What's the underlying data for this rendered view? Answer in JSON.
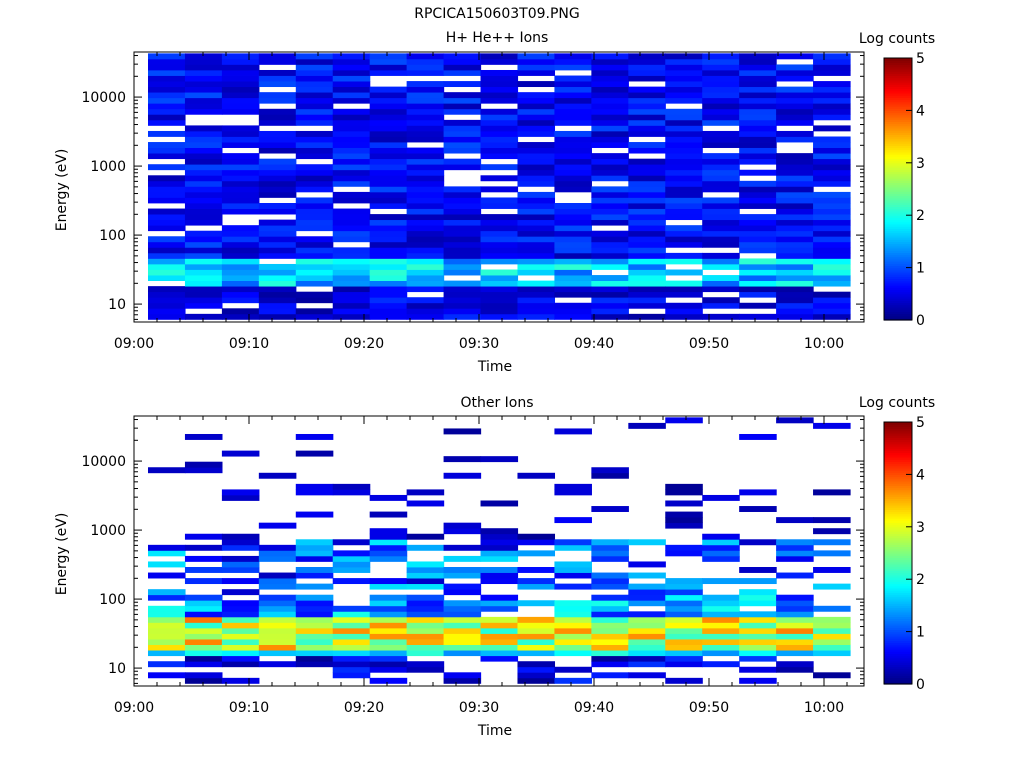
{
  "figure": {
    "title": "RPCICA150603T09.PNG"
  },
  "colormap": {
    "stops": [
      "#00007f",
      "#0000ff",
      "#007fff",
      "#00ffff",
      "#7fff7f",
      "#ffff00",
      "#ff7f00",
      "#ff0000",
      "#7f0000"
    ]
  },
  "chart_data": [
    {
      "type": "heatmap",
      "title": "H+ He++ Ions",
      "xlabel": "Time",
      "ylabel": "Energy (eV)",
      "x_ticks": [
        "09:00",
        "09:10",
        "09:20",
        "09:30",
        "09:40",
        "09:50",
        "10:00"
      ],
      "y_ticks": [
        "10",
        "100",
        "1000",
        "10000"
      ],
      "y_scale": "log",
      "ylim": [
        5.5,
        45000
      ],
      "colorbar": {
        "label": "Log counts",
        "ticks": [
          "0",
          "1",
          "2",
          "3",
          "4",
          "5"
        ],
        "range": [
          0,
          5
        ]
      },
      "bins": {
        "time_columns": 19,
        "energy_rows": 48
      },
      "description_levels": "Mostly 0.2-1.2 log counts at all energies; peak ~1.5-2.1 in the 20-45 eV band"
    },
    {
      "type": "heatmap",
      "title": "Other Ions",
      "xlabel": "Time",
      "ylabel": "Energy (eV)",
      "x_ticks": [
        "09:00",
        "09:10",
        "09:20",
        "09:30",
        "09:40",
        "09:50",
        "10:00"
      ],
      "y_ticks": [
        "10",
        "100",
        "1000",
        "10000"
      ],
      "y_scale": "log",
      "ylim": [
        5.5,
        45000
      ],
      "colorbar": {
        "label": "Log counts",
        "ticks": [
          "0",
          "1",
          "2",
          "3",
          "4",
          "5"
        ],
        "range": [
          0,
          5
        ]
      },
      "bins": {
        "time_columns": 19,
        "energy_rows": 48
      },
      "description_levels": "Strong band 20-50 eV reaching ~3-3.8 log counts; sparse weak counts above 100 eV"
    }
  ]
}
